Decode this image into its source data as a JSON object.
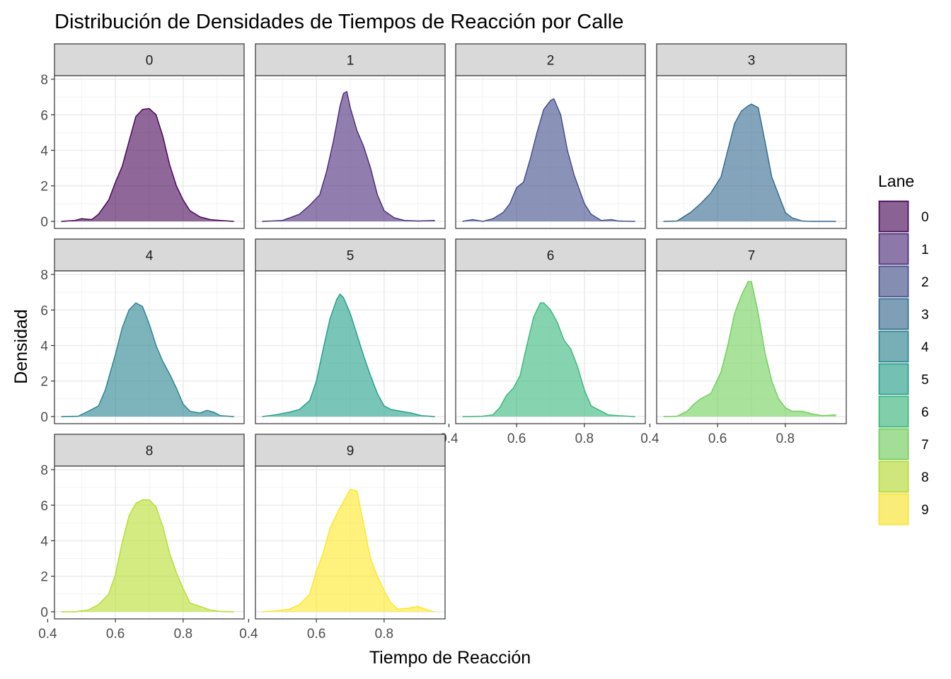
{
  "chart_data": {
    "type": "area",
    "title": "Distribución de Densidades de Tiempos de Reacción por Calle",
    "xlabel": "Tiempo de Reacción",
    "ylabel": "Densidad",
    "xlim": [
      0.42,
      0.98
    ],
    "ylim": [
      -0.4,
      8.2
    ],
    "x_ticks": [
      "0.4",
      "0.6",
      "0.8"
    ],
    "y_ticks": [
      "0",
      "2",
      "4",
      "6",
      "8"
    ],
    "grid": true,
    "legend": {
      "title": "Lane",
      "position": "right",
      "entries": [
        "0",
        "1",
        "2",
        "3",
        "4",
        "5",
        "6",
        "7",
        "8",
        "9"
      ]
    },
    "series": [
      {
        "name": "0",
        "fill": "#440154",
        "stroke": "#440154",
        "x": [
          0.44,
          0.48,
          0.5,
          0.53,
          0.55,
          0.58,
          0.6,
          0.62,
          0.64,
          0.66,
          0.68,
          0.7,
          0.72,
          0.74,
          0.76,
          0.78,
          0.8,
          0.82,
          0.85,
          0.88,
          0.91,
          0.95
        ],
        "y": [
          0.0,
          0.05,
          0.15,
          0.1,
          0.4,
          1.2,
          2.2,
          3.1,
          4.5,
          5.9,
          6.3,
          6.35,
          6.0,
          4.8,
          3.2,
          2.0,
          1.2,
          0.6,
          0.25,
          0.1,
          0.05,
          0.0
        ]
      },
      {
        "name": "1",
        "fill": "#482878",
        "stroke": "#482878",
        "x": [
          0.44,
          0.5,
          0.55,
          0.58,
          0.61,
          0.63,
          0.65,
          0.66,
          0.67,
          0.68,
          0.69,
          0.7,
          0.72,
          0.74,
          0.76,
          0.78,
          0.8,
          0.83,
          0.86,
          0.9,
          0.95
        ],
        "y": [
          0.0,
          0.05,
          0.4,
          0.9,
          1.5,
          2.8,
          4.5,
          5.5,
          6.5,
          7.2,
          7.3,
          6.4,
          5.1,
          4.2,
          3.0,
          1.5,
          0.6,
          0.2,
          0.05,
          0.02,
          0.05
        ]
      },
      {
        "name": "2",
        "fill": "#3e4989",
        "stroke": "#3e4989",
        "x": [
          0.44,
          0.47,
          0.5,
          0.53,
          0.56,
          0.58,
          0.6,
          0.62,
          0.64,
          0.66,
          0.68,
          0.7,
          0.71,
          0.73,
          0.75,
          0.77,
          0.8,
          0.82,
          0.85,
          0.88,
          0.9,
          0.95
        ],
        "y": [
          0.0,
          0.1,
          0.0,
          0.15,
          0.5,
          1.0,
          1.9,
          2.2,
          3.5,
          5.0,
          6.3,
          6.8,
          6.9,
          6.0,
          4.0,
          2.6,
          1.0,
          0.4,
          0.05,
          0.1,
          0.02,
          0.0
        ]
      },
      {
        "name": "3",
        "fill": "#31688e",
        "stroke": "#31688e",
        "x": [
          0.44,
          0.48,
          0.52,
          0.55,
          0.58,
          0.61,
          0.63,
          0.65,
          0.67,
          0.69,
          0.7,
          0.72,
          0.74,
          0.76,
          0.78,
          0.8,
          0.82,
          0.85,
          0.88,
          0.92,
          0.95
        ],
        "y": [
          0.0,
          0.02,
          0.5,
          1.0,
          1.6,
          2.5,
          4.0,
          5.5,
          6.2,
          6.5,
          6.6,
          6.4,
          4.5,
          2.5,
          1.5,
          0.5,
          0.2,
          0.02,
          0.0,
          0.0,
          0.0
        ]
      },
      {
        "name": "4",
        "fill": "#26828e",
        "stroke": "#26828e",
        "x": [
          0.44,
          0.49,
          0.52,
          0.55,
          0.57,
          0.6,
          0.62,
          0.64,
          0.66,
          0.68,
          0.7,
          0.72,
          0.74,
          0.76,
          0.78,
          0.8,
          0.82,
          0.85,
          0.87,
          0.89,
          0.91,
          0.95
        ],
        "y": [
          0.0,
          0.02,
          0.3,
          0.6,
          1.5,
          3.5,
          5.0,
          6.0,
          6.4,
          6.2,
          5.2,
          4.0,
          3.1,
          2.4,
          1.6,
          0.7,
          0.3,
          0.2,
          0.35,
          0.25,
          0.05,
          0.0
        ]
      },
      {
        "name": "5",
        "fill": "#1f9e89",
        "stroke": "#1f9e89",
        "x": [
          0.44,
          0.48,
          0.52,
          0.55,
          0.58,
          0.6,
          0.62,
          0.64,
          0.66,
          0.67,
          0.68,
          0.7,
          0.72,
          0.74,
          0.76,
          0.78,
          0.8,
          0.82,
          0.85,
          0.88,
          0.91,
          0.95
        ],
        "y": [
          0.0,
          0.1,
          0.25,
          0.4,
          0.9,
          2.0,
          3.8,
          5.5,
          6.6,
          6.9,
          6.7,
          5.8,
          4.6,
          3.4,
          2.3,
          1.3,
          0.6,
          0.4,
          0.3,
          0.2,
          0.05,
          0.0
        ]
      },
      {
        "name": "6",
        "fill": "#35b779",
        "stroke": "#35b779",
        "x": [
          0.44,
          0.5,
          0.53,
          0.55,
          0.57,
          0.59,
          0.61,
          0.63,
          0.65,
          0.67,
          0.68,
          0.7,
          0.72,
          0.74,
          0.76,
          0.78,
          0.8,
          0.82,
          0.84,
          0.87,
          0.9,
          0.95
        ],
        "y": [
          0.0,
          0.02,
          0.1,
          0.5,
          1.2,
          1.6,
          2.3,
          4.0,
          5.6,
          6.4,
          6.4,
          6.0,
          5.3,
          4.3,
          3.8,
          2.8,
          1.5,
          0.6,
          0.4,
          0.1,
          0.05,
          0.0
        ]
      },
      {
        "name": "7",
        "fill": "#6ece58",
        "stroke": "#6ece58",
        "x": [
          0.44,
          0.48,
          0.51,
          0.53,
          0.55,
          0.58,
          0.61,
          0.63,
          0.65,
          0.67,
          0.69,
          0.7,
          0.72,
          0.74,
          0.76,
          0.78,
          0.8,
          0.82,
          0.85,
          0.88,
          0.91,
          0.95
        ],
        "y": [
          0.0,
          0.02,
          0.3,
          0.7,
          1.0,
          1.3,
          2.5,
          4.0,
          5.8,
          6.8,
          7.6,
          7.6,
          5.8,
          3.6,
          2.0,
          1.0,
          0.5,
          0.3,
          0.3,
          0.15,
          0.05,
          0.1
        ]
      },
      {
        "name": "8",
        "fill": "#b5de2b",
        "stroke": "#b5de2b",
        "x": [
          0.44,
          0.48,
          0.52,
          0.55,
          0.58,
          0.6,
          0.62,
          0.64,
          0.66,
          0.68,
          0.7,
          0.72,
          0.74,
          0.76,
          0.78,
          0.8,
          0.82,
          0.85,
          0.88,
          0.91,
          0.95
        ],
        "y": [
          0.0,
          0.0,
          0.1,
          0.4,
          1.0,
          2.1,
          3.9,
          5.4,
          6.1,
          6.3,
          6.3,
          5.9,
          4.8,
          3.3,
          2.2,
          1.3,
          0.5,
          0.3,
          0.1,
          0.02,
          0.0
        ]
      },
      {
        "name": "9",
        "fill": "#fde725",
        "stroke": "#fde725",
        "x": [
          0.44,
          0.48,
          0.52,
          0.55,
          0.58,
          0.6,
          0.62,
          0.64,
          0.66,
          0.68,
          0.7,
          0.72,
          0.74,
          0.76,
          0.78,
          0.8,
          0.82,
          0.84,
          0.87,
          0.9,
          0.92,
          0.95
        ],
        "y": [
          0.0,
          0.05,
          0.15,
          0.4,
          1.0,
          2.3,
          3.3,
          4.7,
          5.5,
          6.2,
          6.9,
          6.8,
          4.9,
          3.0,
          2.0,
          1.2,
          0.5,
          0.15,
          0.2,
          0.3,
          0.15,
          0.0
        ]
      }
    ]
  }
}
